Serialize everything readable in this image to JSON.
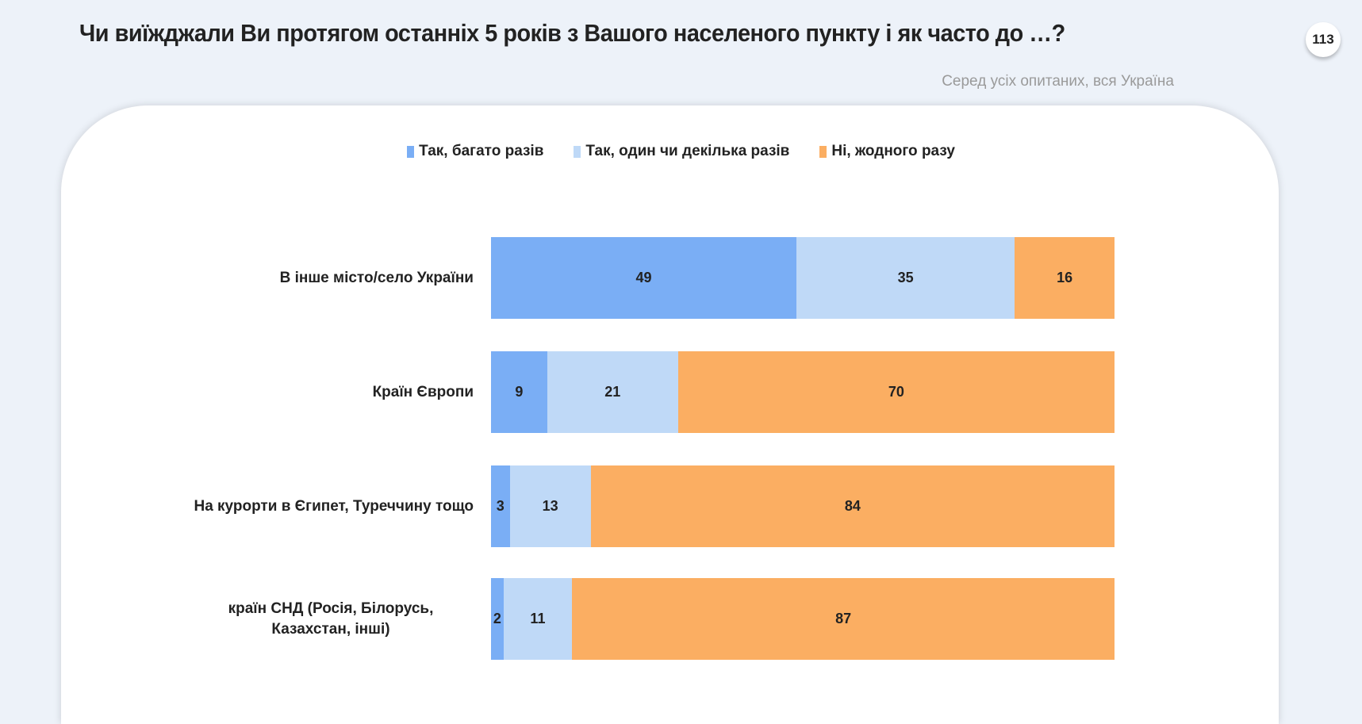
{
  "title": "Чи виїжджали Ви протягом останніх 5 років з Вашого населеного пункту і як часто до …?",
  "page_number": "113",
  "subtitle": "Серед усіх опитаних, вся Україна",
  "chart_data": {
    "type": "bar",
    "orientation": "horizontal-stacked-100",
    "categories": [
      "В інше місто/село України",
      "Країн Європи",
      "На курорти в Єгипет, Туреччину тощо",
      "країн СНД (Росія, Білорусь, Казахстан, інші)"
    ],
    "series": [
      {
        "name": "Так, багато разів",
        "color": "#7aaef5",
        "values": [
          49,
          9,
          3,
          2
        ]
      },
      {
        "name": "Так, один чи декілька разів",
        "color": "#bfd9f7",
        "values": [
          35,
          21,
          13,
          11
        ]
      },
      {
        "name": "Ні, жодного разу",
        "color": "#fbae62",
        "values": [
          16,
          70,
          84,
          87
        ]
      }
    ],
    "legend_position": "top",
    "xlim": [
      0,
      100
    ],
    "grid": false
  }
}
